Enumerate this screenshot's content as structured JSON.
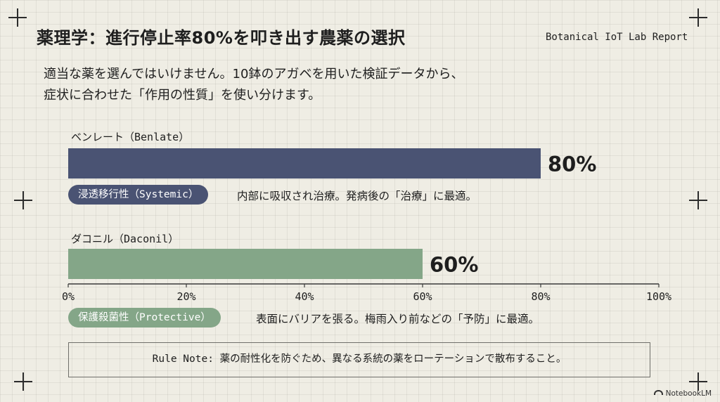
{
  "header": {
    "title": "薬理学：進行停止率80%を叩き出す農薬の選択",
    "report_label": "Botanical IoT Lab Report"
  },
  "intro": {
    "line1": "適当な薬を選んではいけません。10鉢のアガベを用いた検証データから、",
    "line2": "症状に合わせた「作用の性質」を使い分けます。"
  },
  "chart_data": {
    "type": "bar",
    "orientation": "horizontal",
    "categories": [
      "ベンレート（Benlate）",
      "ダコニル（Daconil）"
    ],
    "values": [
      80,
      60
    ],
    "value_labels": [
      "80%",
      "60%"
    ],
    "xlim": [
      0,
      100
    ],
    "x_ticks": [
      "0%",
      "20%",
      "40%",
      "60%",
      "80%",
      "100%"
    ],
    "colors": [
      "#4a5373",
      "#84a688"
    ],
    "grid": false,
    "legend": "none"
  },
  "annotations": {
    "benlate": {
      "tag": "浸透移行性（Systemic）",
      "desc": "内部に吸収され治療。発病後の「治療」に最適。",
      "tag_color": "#4a5373"
    },
    "daconil": {
      "tag": "保護殺菌性（Protective）",
      "desc": "表面にバリアを張る。梅雨入り前などの「予防」に最適。",
      "tag_color": "#84a688"
    }
  },
  "note": {
    "text": "Rule Note: 薬の耐性化を防ぐため、異なる系統の薬をローテーションで散布すること。"
  },
  "footer": {
    "brand": "NotebookLM"
  }
}
